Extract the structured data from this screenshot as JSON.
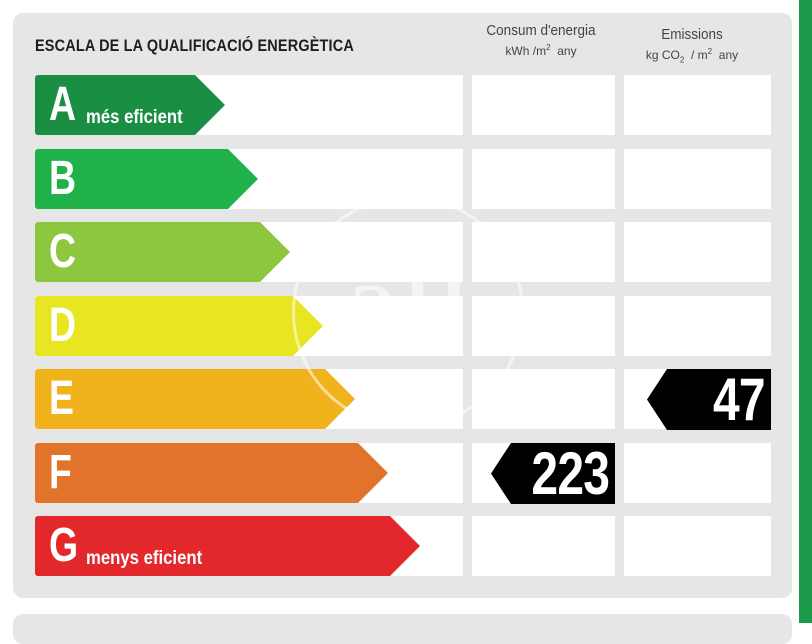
{
  "header": {
    "title": "ESCALA DE LA QUALIFICACIÓ ENERGÈTICA",
    "energy_col": {
      "line1": "Consum d'energia",
      "unit_base": "kWh /m",
      "unit_sup": "2",
      "unit_tail": "any"
    },
    "emissions_col": {
      "line1": "Emissions",
      "unit_base": "kg CO",
      "unit_sub": "2",
      "unit_mid": "/ m",
      "unit_sup": "2",
      "unit_tail": "any"
    }
  },
  "ratings": [
    {
      "letter": "A",
      "sublabel": "més eficient",
      "color": "#1a8f44"
    },
    {
      "letter": "B",
      "sublabel": "",
      "color": "#21b14a"
    },
    {
      "letter": "C",
      "sublabel": "",
      "color": "#8dc63f"
    },
    {
      "letter": "D",
      "sublabel": "",
      "color": "#e8e622"
    },
    {
      "letter": "E",
      "sublabel": "",
      "color": "#f0b31c"
    },
    {
      "letter": "F",
      "sublabel": "",
      "color": "#e2732a"
    },
    {
      "letter": "G",
      "sublabel": "menys eficient",
      "color": "#e2282b"
    }
  ],
  "values": {
    "energy": {
      "rating": "F",
      "value": "223"
    },
    "emissions": {
      "rating": "E",
      "value": "47"
    }
  },
  "watermark": {
    "text": "aP"
  },
  "colors": {
    "panel": "#e6e6e6",
    "stripe": "#1b9a4a",
    "tag": "#000000"
  }
}
